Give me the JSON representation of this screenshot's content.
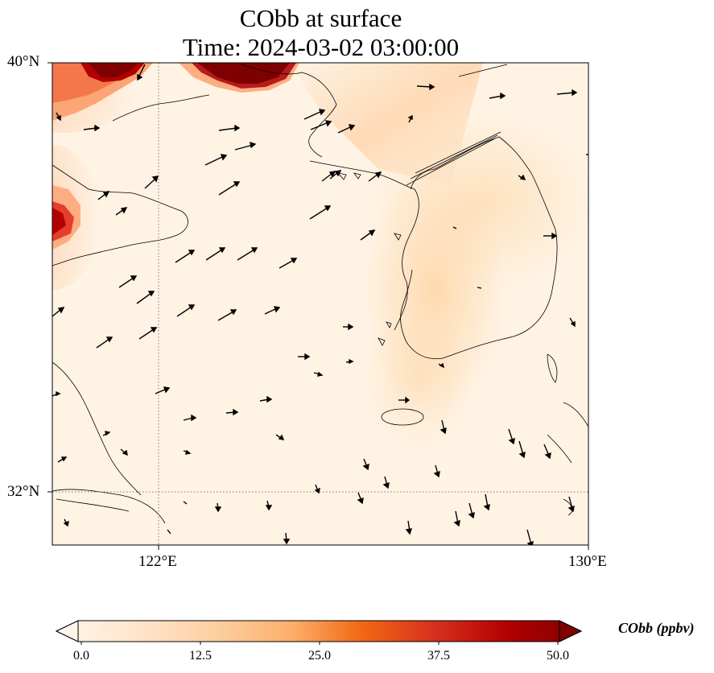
{
  "title_line1": "CObb at surface",
  "title_line2": "Time: 2024-03-02 03:00:00",
  "axes": {
    "lat_labels": [
      "40°N",
      "32°N"
    ],
    "lon_labels": [
      "122°E",
      "130°E"
    ]
  },
  "colorbar": {
    "label": "CObb (ppbv)",
    "ticks": [
      "0.0",
      "12.5",
      "25.0",
      "37.5",
      "50.0"
    ],
    "min": 0,
    "max": 50,
    "colormap": [
      "#fff5eb",
      "#fee6ce",
      "#fdd0a2",
      "#fdae6b",
      "#fd8d3c",
      "#f16913",
      "#d94801",
      "#a50f15",
      "#7f0000"
    ]
  },
  "map": {
    "lon_range": [
      120,
      130
    ],
    "lat_range": [
      31,
      40
    ],
    "gridlines": {
      "lon": 122,
      "lat": 32
    },
    "colors": {
      "land_fill": "#fff3e4",
      "plume_high": "#7f0000",
      "coast": "#000000"
    }
  }
}
